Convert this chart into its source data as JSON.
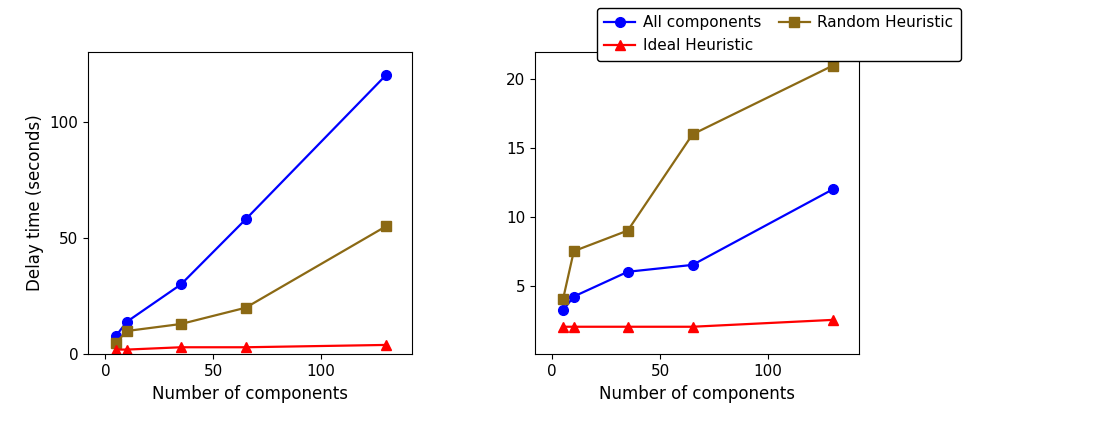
{
  "x_values": [
    5,
    10,
    35,
    65,
    130
  ],
  "left": {
    "all_components": [
      8,
      14,
      30,
      58,
      120
    ],
    "random_heuristic": [
      5,
      10,
      13,
      20,
      55
    ],
    "ideal_heuristic": [
      2,
      2,
      3,
      3,
      4
    ],
    "ylim": [
      0,
      130
    ],
    "yticks": [
      0,
      50,
      100
    ],
    "ylabel": "Delay time (seconds)"
  },
  "right": {
    "all_components": [
      3.2,
      4.2,
      6.0,
      6.5,
      12.0
    ],
    "random_heuristic": [
      4.0,
      7.5,
      9.0,
      16.0,
      21.0
    ],
    "ideal_heuristic": [
      2.0,
      2.0,
      2.0,
      2.0,
      2.5
    ],
    "ylim": [
      0,
      22
    ],
    "yticks": [
      5,
      10,
      15,
      20
    ]
  },
  "xlabel": "Number of components",
  "line_all_color": "#0000ff",
  "line_random_color": "#8B6914",
  "line_ideal_color": "#ff0000",
  "legend_labels": [
    "All components",
    "Ideal Heuristic",
    "Random Heuristic"
  ],
  "xticks": [
    0,
    50,
    100
  ]
}
